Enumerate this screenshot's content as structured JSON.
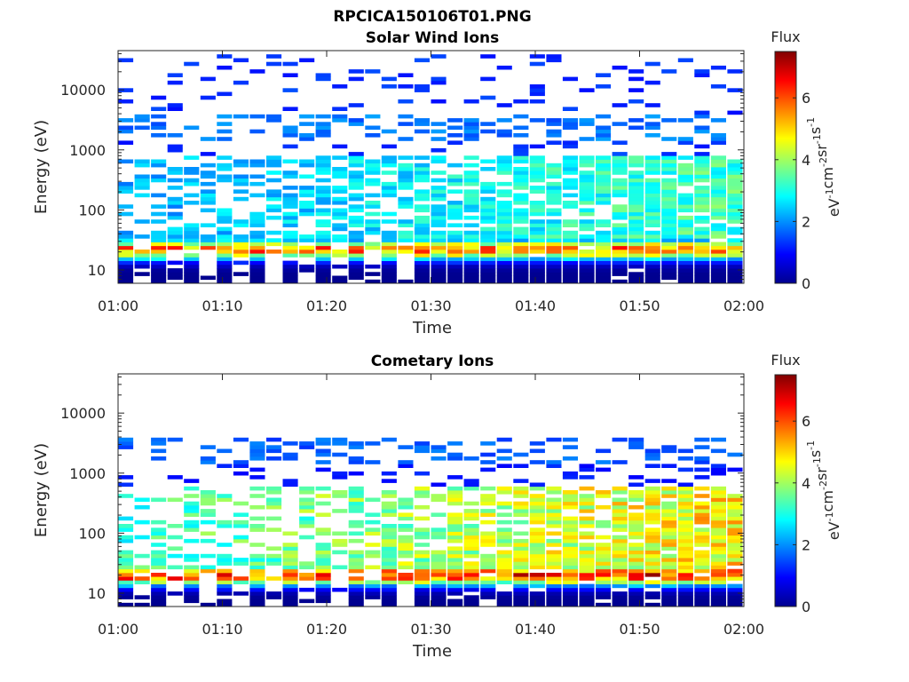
{
  "figure": {
    "title": "RPCICA150106T01.PNG"
  },
  "colorbar": {
    "label": "Flux",
    "units_parts": [
      "eV",
      "-1",
      "cm",
      "-2",
      "sr",
      "-1",
      "s",
      "-1"
    ],
    "ticks": [
      "0",
      "2",
      "4",
      "6"
    ],
    "range": [
      0,
      7.5
    ],
    "colormap": [
      "#00008f",
      "#0000ff",
      "#0080ff",
      "#00ffff",
      "#80ff80",
      "#ffff00",
      "#ff8000",
      "#ff0000",
      "#800000"
    ]
  },
  "chart_data": [
    {
      "type": "heatmap",
      "title": "Solar Wind Ions",
      "xlabel": "Time",
      "ylabel": "Energy (eV)",
      "x_ticks": [
        "01:00",
        "01:10",
        "01:20",
        "01:30",
        "01:40",
        "01:50",
        "02:00"
      ],
      "y_ticks": [
        "10",
        "100",
        "1000",
        "10000"
      ],
      "yscale": "log",
      "xlim": [
        "01:00",
        "02:00"
      ],
      "ylim": [
        6,
        45000
      ],
      "z_label": "Flux",
      "zlim": [
        0,
        7.5
      ],
      "profile": {
        "peak_low_energy_eV": 22,
        "peak_low_flux": 5.6,
        "mid_band_eV": [
          60,
          300
        ],
        "mid_band_flux": 2.9,
        "high_band_eV": [
          1500,
          4000
        ],
        "high_band_flux": 1.8,
        "max_energy_eV": 40000
      }
    },
    {
      "type": "heatmap",
      "title": "Cometary Ions",
      "xlabel": "Time",
      "ylabel": "Energy (eV)",
      "x_ticks": [
        "01:00",
        "01:10",
        "01:20",
        "01:30",
        "01:40",
        "01:50",
        "02:00"
      ],
      "y_ticks": [
        "10",
        "100",
        "1000",
        "10000"
      ],
      "yscale": "log",
      "xlim": [
        "01:00",
        "02:00"
      ],
      "ylim": [
        6,
        45000
      ],
      "z_label": "Flux",
      "zlim": [
        0,
        7.5
      ],
      "profile": {
        "peak_low_energy_eV": 20,
        "peak_low_flux": 6.2,
        "mid_band_eV": [
          40,
          250
        ],
        "mid_band_flux": 4.2,
        "high_band_eV": [
          1500,
          4000
        ],
        "high_band_flux": 1.6,
        "max_energy_eV": 4000
      }
    }
  ]
}
